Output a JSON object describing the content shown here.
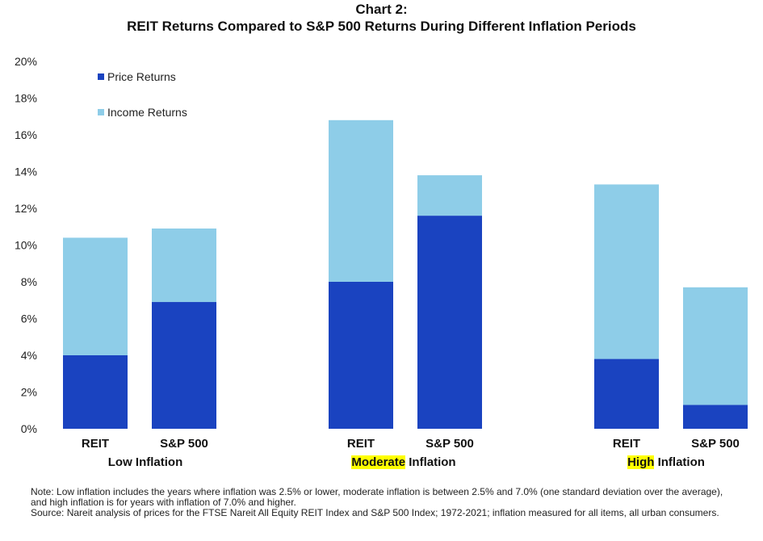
{
  "chart_data": {
    "type": "bar",
    "stacked": true,
    "title": "Chart 2:",
    "subtitle": "REIT Returns Compared to S&P 500 Returns During Different Inflation Periods",
    "categories": [
      "REIT",
      "S&P 500",
      "REIT",
      "S&P 500",
      "REIT",
      "S&P 500"
    ],
    "groups": [
      {
        "highlight": "",
        "rest": "Low Inflation",
        "categories": [
          "REIT",
          "S&P 500"
        ]
      },
      {
        "highlight": "Moderate",
        "rest": " Inflation",
        "categories": [
          "REIT",
          "S&P 500"
        ]
      },
      {
        "highlight": "High",
        "rest": " Inflation",
        "categories": [
          "REIT",
          "S&P 500"
        ]
      }
    ],
    "series": [
      {
        "name": "Price Returns",
        "color": "#1a43c0",
        "values": [
          4.0,
          6.9,
          8.0,
          11.6,
          3.8,
          1.3
        ]
      },
      {
        "name": "Income Returns",
        "color": "#8ecde8",
        "values": [
          6.4,
          4.0,
          8.8,
          2.2,
          9.5,
          6.4
        ]
      }
    ],
    "ylim": [
      0,
      20
    ],
    "yticks": [
      "0%",
      "2%",
      "4%",
      "6%",
      "8%",
      "10%",
      "12%",
      "14%",
      "16%",
      "18%",
      "20%"
    ],
    "legend_position": "top-left",
    "grid": false
  },
  "notes": {
    "line1": "Note: Low inflation includes the years where inflation was 2.5% or lower, moderate inflation is between 2.5% and 7.0% (one standard deviation over the average), and high inflation is for years with inflation of 7.0% and higher.",
    "line2": "Source: Nareit analysis of prices for the FTSE Nareit All Equity REIT Index and S&P 500 Index; 1972-2021; inflation measured for all items, all urban consumers."
  }
}
